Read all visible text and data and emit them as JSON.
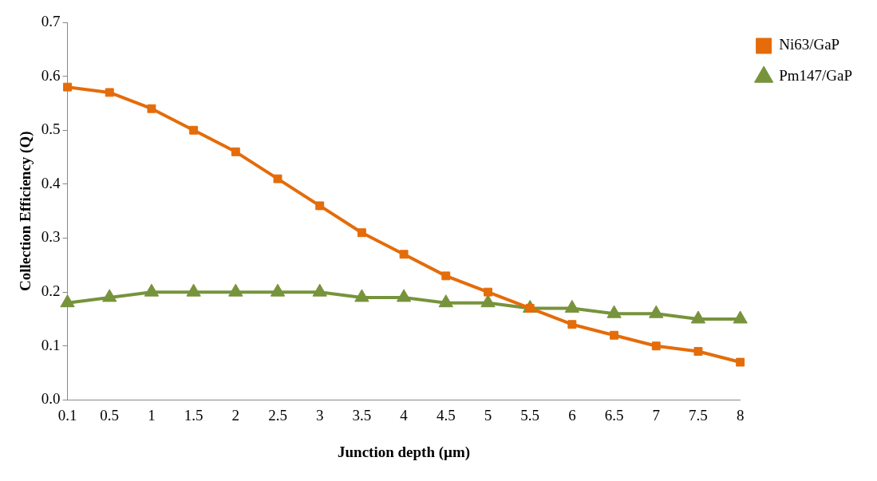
{
  "chart_data": {
    "type": "line",
    "xlabel": "Junction depth (µm)",
    "ylabel": "Collection Efficiency (Q)",
    "categories": [
      "0.1",
      "0.5",
      "1",
      "1.5",
      "2",
      "2.5",
      "3",
      "3.5",
      "4",
      "4.5",
      "5",
      "5.5",
      "6",
      "6.5",
      "7",
      "7.5",
      "8"
    ],
    "series": [
      {
        "name": "Ni63/GaP",
        "color": "#e46c0a",
        "marker": "square",
        "values": [
          0.58,
          0.57,
          0.54,
          0.5,
          0.46,
          0.41,
          0.36,
          0.31,
          0.27,
          0.23,
          0.2,
          0.17,
          0.14,
          0.12,
          0.1,
          0.09,
          0.07
        ]
      },
      {
        "name": "Pm147/GaP",
        "color": "#77933c",
        "marker": "triangle",
        "values": [
          0.18,
          0.19,
          0.2,
          0.2,
          0.2,
          0.2,
          0.2,
          0.19,
          0.19,
          0.18,
          0.18,
          0.17,
          0.17,
          0.16,
          0.16,
          0.15,
          0.15
        ]
      }
    ],
    "ylim": [
      0,
      0.7
    ],
    "yticks": [
      {
        "value": 0,
        "label": "0.0"
      },
      0.1,
      0.2,
      0.3,
      0.4,
      0.5,
      0.6,
      0.7
    ],
    "grid": false,
    "legend": "right",
    "line_style": "solid"
  }
}
